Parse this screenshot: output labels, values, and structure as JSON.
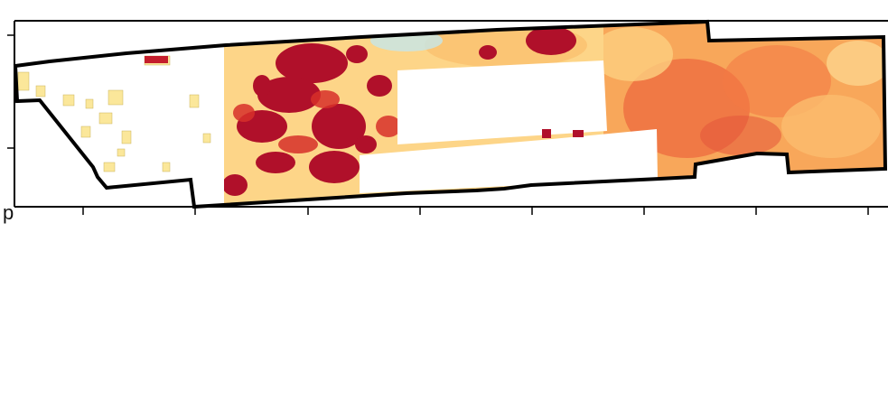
{
  "map": {
    "x_axis": {
      "first_tick_label": "p"
    },
    "colors": {
      "boundary": "#000000",
      "low": "#ffffbf",
      "light": "#fee08b",
      "medium": "#fdae61",
      "high": "#f46d43",
      "very_high": "#d73027",
      "extreme": "#a50026",
      "water": "#c6e6ea"
    }
  }
}
